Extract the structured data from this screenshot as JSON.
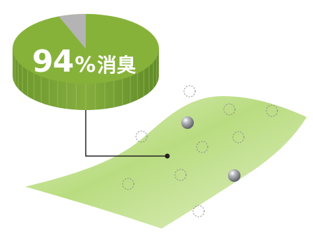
{
  "figure": {
    "value_percent": 94,
    "number_text": "94",
    "percent_sign": "%",
    "label_text": "消臭",
    "colors": {
      "pie_top": "#87b23a",
      "pie_side": "#6f9930",
      "remainder_slice": "#b4b4b4",
      "fabric_light": "#d7eab0",
      "fabric_dark": "#aed17a",
      "ball": "#8c8f93",
      "leader_line": "#222222"
    },
    "icons": [
      "pie-chart",
      "fabric-sheet",
      "odor-particle-circle",
      "metal-ball",
      "leader-line"
    ]
  }
}
